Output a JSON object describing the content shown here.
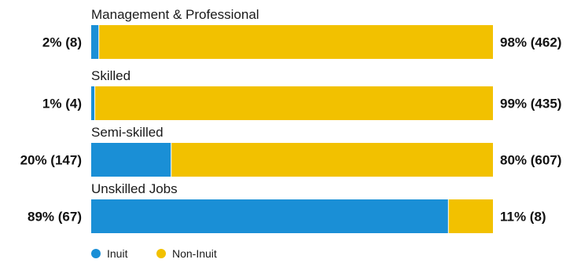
{
  "chart_data": {
    "type": "bar",
    "orientation": "horizontal",
    "stacked": true,
    "normalized": true,
    "categories": [
      "Management & Professional",
      "Skilled",
      "Semi-skilled",
      "Unskilled Jobs"
    ],
    "series": [
      {
        "name": "Inuit",
        "color": "#1a8fd6",
        "percent": [
          2,
          1,
          20,
          89
        ],
        "counts": [
          8,
          4,
          147,
          67
        ],
        "labels": [
          "2% (8)",
          "1% (4)",
          "20% (147)",
          "89% (67)"
        ]
      },
      {
        "name": "Non-Inuit",
        "color": "#f2c100",
        "percent": [
          98,
          99,
          80,
          11
        ],
        "counts": [
          462,
          435,
          607,
          8
        ],
        "labels": [
          "98% (462)",
          "99% (435)",
          "80% (607)",
          "11% (8)"
        ]
      }
    ],
    "grid": false,
    "legend_position": "bottom-left"
  }
}
